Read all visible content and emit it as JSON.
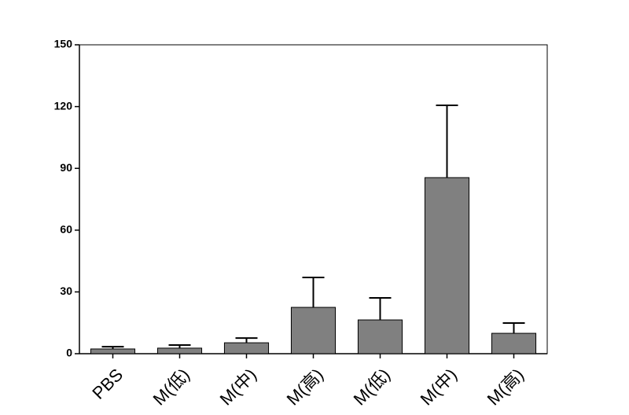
{
  "chart_data": {
    "type": "bar",
    "categories": [
      "PBS",
      "M(低)",
      "M(中)",
      "M(高)",
      "M(低)",
      "M(中)",
      "M(高)"
    ],
    "series": [
      {
        "color": "#808080",
        "values": [
          2.3,
          2.7,
          5.3,
          22.5,
          16.4,
          85.5,
          9.9
        ],
        "errors": [
          1.1,
          1.5,
          2.3,
          14.5,
          10.7,
          35.1,
          5.0
        ]
      }
    ],
    "ylim": [
      0,
      150
    ],
    "yticks": [
      0,
      30,
      60,
      90,
      120,
      150
    ],
    "grid": false
  }
}
